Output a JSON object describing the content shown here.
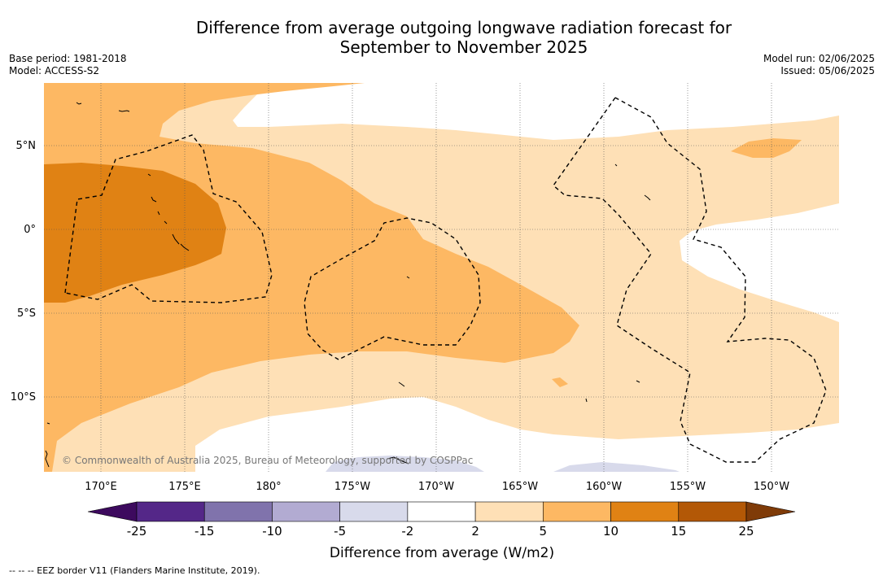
{
  "title_line1": "Difference from average outgoing longwave radiation forecast for",
  "title_line2": "September to November 2025",
  "base_period": "Base period: 1981-2018",
  "model": "Model: ACCESS-S2",
  "model_run": "Model run: 02/06/2025",
  "issued": "Issued: 05/06/2025",
  "copyright": "© Commonwealth of Australia 2025, Bureau of Meteorology, supported by COSPPac",
  "lat_labels": [
    "5°N",
    "0°",
    "5°S",
    "10°S"
  ],
  "lon_labels": [
    "170°E",
    "175°E",
    "180°",
    "175°W",
    "170°W",
    "165°W",
    "160°W",
    "155°W",
    "150°W"
  ],
  "colorbar": {
    "ticks": [
      "-25",
      "-15",
      "-10",
      "-5",
      "-2",
      "2",
      "5",
      "10",
      "15",
      "25"
    ],
    "colors": [
      "#3d0a5e",
      "#542788",
      "#8073ac",
      "#b2abd2",
      "#d8daeb",
      "#ffffff",
      "#fee0b6",
      "#fdb863",
      "#e08214",
      "#b35806",
      "#7f3b08"
    ],
    "label": "Difference from average (W/m2)"
  },
  "footer_note": "--  --  -- EEZ border V11 (Flanders Marine Institute, 2019)."
}
